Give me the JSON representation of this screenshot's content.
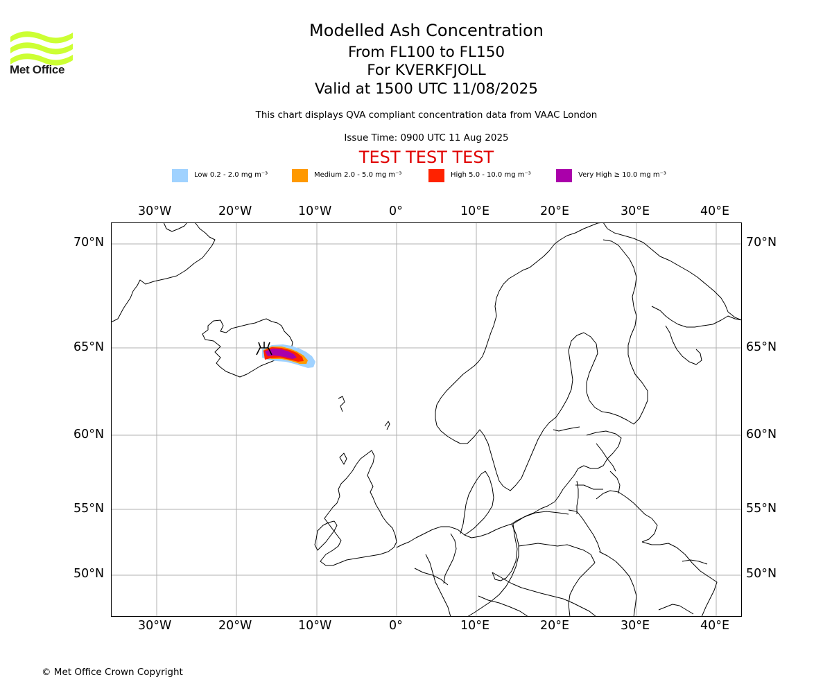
{
  "logo": {
    "text": "Met Office",
    "color": "#ccff33"
  },
  "header": {
    "title": "Modelled Ash Concentration",
    "line2": "From FL100 to FL150",
    "line3": "For KVERKFJOLL",
    "line4": "Valid at 1500 UTC 11/08/2025",
    "info": "This chart displays QVA compliant concentration data from VAAC London",
    "issue_time": "Issue Time: 0900 UTC 11 Aug 2025",
    "test_banner": "TEST TEST TEST"
  },
  "legend": [
    {
      "label": "Low 0.2 - 2.0 mg m⁻³",
      "color": "#a0d2ff"
    },
    {
      "label": "Medium 2.0 - 5.0 mg m⁻³",
      "color": "#ff9900"
    },
    {
      "label": "High 5.0 - 10.0 mg m⁻³",
      "color": "#ff2200"
    },
    {
      "label": "Very High  ≥  10.0 mg m⁻³",
      "color": "#aa00aa"
    }
  ],
  "map": {
    "lon_ticks": [
      "30°W",
      "20°W",
      "10°W",
      "0°",
      "10°E",
      "20°E",
      "30°E",
      "40°E"
    ],
    "lat_ticks": [
      "70°N",
      "65°N",
      "60°N",
      "55°N",
      "50°N"
    ],
    "volcano": "KVERKFJOLL"
  },
  "footer": {
    "copyright": "© Met Office Crown Copyright"
  }
}
